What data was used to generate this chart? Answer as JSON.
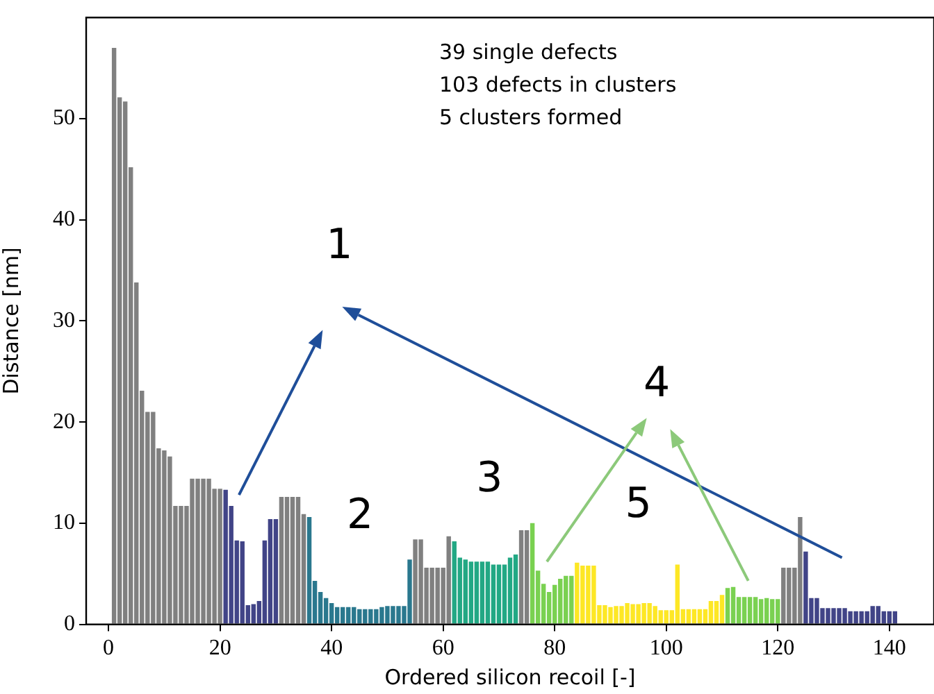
{
  "chart_data": {
    "type": "bar",
    "xlabel": "Ordered silicon recoil [-]",
    "ylabel": "Distance [nm]",
    "x": [
      1,
      2,
      3,
      4,
      5,
      6,
      7,
      8,
      9,
      10,
      11,
      12,
      13,
      14,
      15,
      16,
      17,
      18,
      19,
      20,
      21,
      22,
      23,
      24,
      25,
      26,
      27,
      28,
      29,
      30,
      31,
      32,
      33,
      34,
      35,
      36,
      37,
      38,
      39,
      40,
      41,
      42,
      43,
      44,
      45,
      46,
      47,
      48,
      49,
      50,
      51,
      52,
      53,
      54,
      55,
      56,
      57,
      58,
      59,
      60,
      61,
      62,
      63,
      64,
      65,
      66,
      67,
      68,
      69,
      70,
      71,
      72,
      73,
      74,
      75,
      76,
      77,
      78,
      79,
      80,
      81,
      82,
      83,
      84,
      85,
      86,
      87,
      88,
      89,
      90,
      91,
      92,
      93,
      94,
      95,
      96,
      97,
      98,
      99,
      100,
      101,
      102,
      103,
      104,
      105,
      106,
      107,
      108,
      109,
      110,
      111,
      112,
      113,
      114,
      115,
      116,
      117,
      118,
      119,
      120,
      121,
      122,
      123,
      124,
      125,
      126,
      127,
      128,
      129,
      130,
      131,
      132,
      133,
      134,
      135,
      136,
      137,
      138,
      139,
      140,
      141
    ],
    "values": [
      57.0,
      52.1,
      51.7,
      45.2,
      33.8,
      23.1,
      21.0,
      21.0,
      17.4,
      17.2,
      16.6,
      11.7,
      11.7,
      11.7,
      14.4,
      14.4,
      14.4,
      14.4,
      13.4,
      13.4,
      13.3,
      11.7,
      8.3,
      8.2,
      1.9,
      2.0,
      2.3,
      8.3,
      10.4,
      10.4,
      12.6,
      12.6,
      12.6,
      12.6,
      10.9,
      10.6,
      4.3,
      3.2,
      2.6,
      2.1,
      1.7,
      1.7,
      1.7,
      1.7,
      1.5,
      1.5,
      1.5,
      1.5,
      1.7,
      1.8,
      1.8,
      1.8,
      1.8,
      6.4,
      8.4,
      8.4,
      5.6,
      5.6,
      5.6,
      5.6,
      8.7,
      8.2,
      6.6,
      6.4,
      6.2,
      6.2,
      6.2,
      6.2,
      5.9,
      5.9,
      5.9,
      6.6,
      6.9,
      9.3,
      9.3,
      10.0,
      5.3,
      4.0,
      3.2,
      3.9,
      4.5,
      4.8,
      4.8,
      6.1,
      5.8,
      5.8,
      5.8,
      1.9,
      1.9,
      1.7,
      1.8,
      1.8,
      2.1,
      2.0,
      2.0,
      2.1,
      2.1,
      1.8,
      1.4,
      1.4,
      1.4,
      5.9,
      1.5,
      1.5,
      1.5,
      1.5,
      1.5,
      2.3,
      2.3,
      2.9,
      3.6,
      3.7,
      2.7,
      2.7,
      2.7,
      2.7,
      2.5,
      2.6,
      2.5,
      2.5,
      5.6,
      5.6,
      5.6,
      10.6,
      7.2,
      2.6,
      2.6,
      1.6,
      1.6,
      1.6,
      1.6,
      1.6,
      1.3,
      1.3,
      1.3,
      1.3,
      1.8,
      1.8,
      1.3,
      1.3,
      1.3
    ],
    "colors": [
      "#808080",
      "#808080",
      "#808080",
      "#808080",
      "#808080",
      "#808080",
      "#808080",
      "#808080",
      "#808080",
      "#808080",
      "#808080",
      "#808080",
      "#808080",
      "#808080",
      "#808080",
      "#808080",
      "#808080",
      "#808080",
      "#808080",
      "#808080",
      "#414487",
      "#414487",
      "#414487",
      "#414487",
      "#414487",
      "#414487",
      "#414487",
      "#414487",
      "#414487",
      "#414487",
      "#808080",
      "#808080",
      "#808080",
      "#808080",
      "#808080",
      "#2a788e",
      "#2a788e",
      "#2a788e",
      "#2a788e",
      "#2a788e",
      "#2a788e",
      "#2a788e",
      "#2a788e",
      "#2a788e",
      "#2a788e",
      "#2a788e",
      "#2a788e",
      "#2a788e",
      "#2a788e",
      "#2a788e",
      "#2a788e",
      "#2a788e",
      "#2a788e",
      "#2a788e",
      "#808080",
      "#808080",
      "#808080",
      "#808080",
      "#808080",
      "#808080",
      "#808080",
      "#22a884",
      "#22a884",
      "#22a884",
      "#22a884",
      "#22a884",
      "#22a884",
      "#22a884",
      "#22a884",
      "#22a884",
      "#22a884",
      "#22a884",
      "#22a884",
      "#808080",
      "#808080",
      "#7ad151",
      "#7ad151",
      "#7ad151",
      "#7ad151",
      "#7ad151",
      "#7ad151",
      "#7ad151",
      "#7ad151",
      "#fde725",
      "#fde725",
      "#fde725",
      "#fde725",
      "#fde725",
      "#fde725",
      "#fde725",
      "#fde725",
      "#fde725",
      "#fde725",
      "#fde725",
      "#fde725",
      "#fde725",
      "#fde725",
      "#fde725",
      "#fde725",
      "#fde725",
      "#fde725",
      "#fde725",
      "#fde725",
      "#fde725",
      "#fde725",
      "#fde725",
      "#fde725",
      "#fde725",
      "#fde725",
      "#fde725",
      "#7ad151",
      "#7ad151",
      "#7ad151",
      "#7ad151",
      "#7ad151",
      "#7ad151",
      "#7ad151",
      "#7ad151",
      "#7ad151",
      "#7ad151",
      "#808080",
      "#808080",
      "#808080",
      "#808080",
      "#414487",
      "#414487",
      "#414487",
      "#414487",
      "#414487",
      "#414487",
      "#414487",
      "#414487",
      "#414487",
      "#414487",
      "#414487",
      "#414487",
      "#414487",
      "#414487",
      "#414487",
      "#414487",
      "#414487"
    ],
    "xlim": [
      -4,
      148
    ],
    "xticks": [
      0,
      20,
      40,
      60,
      80,
      100,
      120,
      140
    ],
    "ylim": [
      0,
      60
    ],
    "yticks": [
      0,
      10,
      20,
      30,
      40,
      50
    ],
    "grid": false,
    "legend": false,
    "annotations": [
      "39 single defects",
      "103 defects in clusters",
      "5 clusters formed",
      "1",
      "2",
      "3",
      "4",
      "5"
    ]
  }
}
